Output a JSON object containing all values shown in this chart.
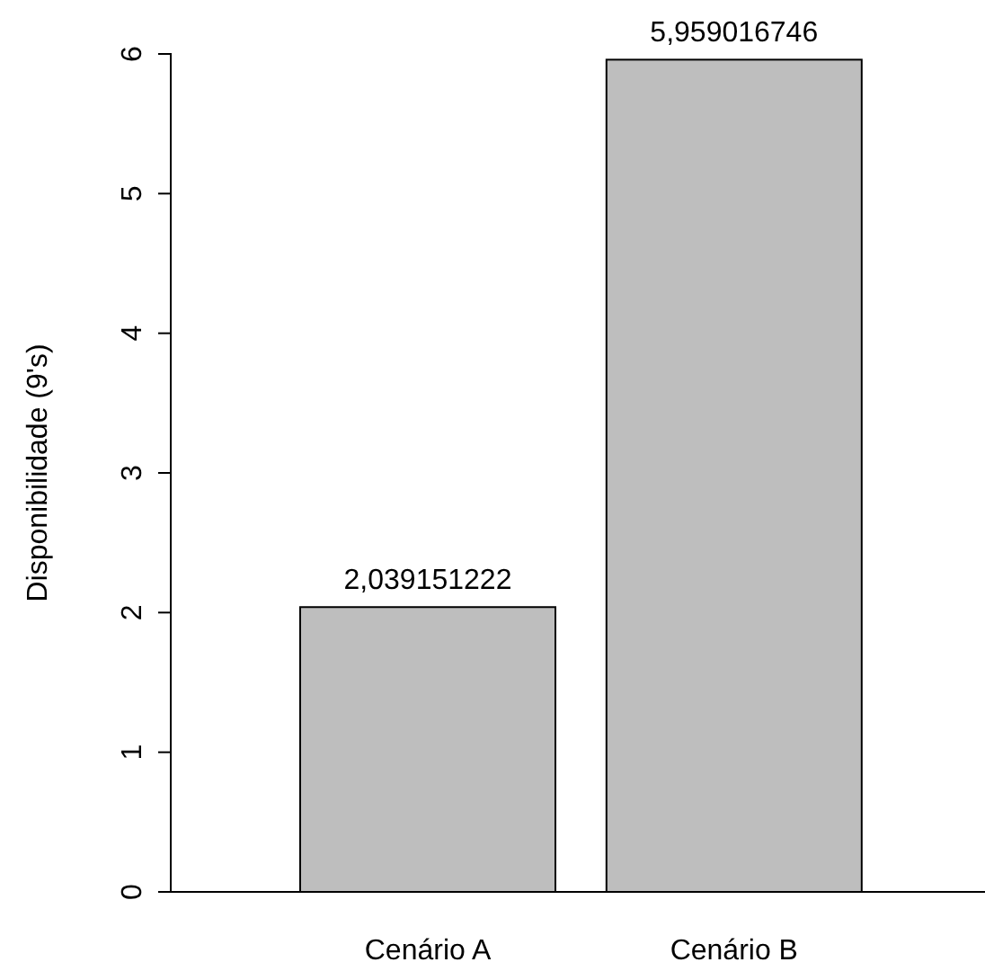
{
  "chart_data": {
    "type": "bar",
    "ylabel": "Disponibilidade (9's)",
    "categories": [
      "Cenário A",
      "Cenário B"
    ],
    "values": [
      2.039151222,
      5.959016746
    ],
    "value_labels": [
      "2,039151222",
      "5,959016746"
    ],
    "color": "#bebebe",
    "ylim": [
      0,
      6
    ],
    "yticks": [
      0,
      1,
      2,
      3,
      4,
      5,
      6
    ]
  }
}
